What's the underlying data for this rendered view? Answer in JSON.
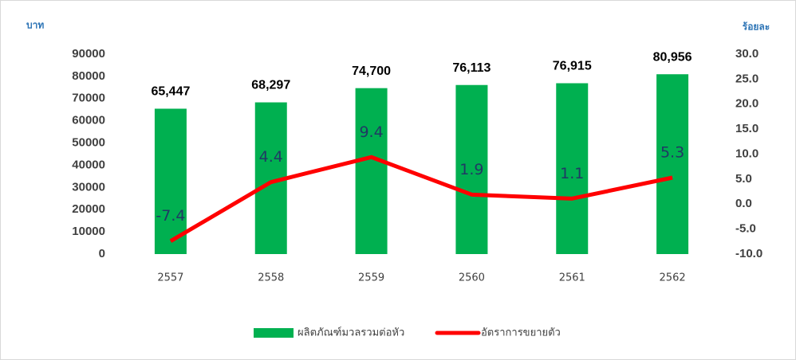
{
  "chart_data": {
    "type": "bar",
    "ylabel": "บาท",
    "y2label": "ร้อยละ",
    "categories": [
      "2557",
      "2558",
      "2559",
      "2560",
      "2561",
      "2562"
    ],
    "series": [
      {
        "name": "ผลิตภัณฑ์มวลรวมต่อหัว",
        "type": "bar",
        "color": "#00b050",
        "values": [
          65447,
          68297,
          74700,
          76113,
          76915,
          80956
        ],
        "value_labels": [
          "65,447",
          "68,297",
          "74,700",
          "76,113",
          "76,915",
          "80,956"
        ]
      },
      {
        "name": "อัตราการขยายตัว",
        "type": "line",
        "axis": "y2",
        "color": "#ff0000",
        "values": [
          -7.4,
          4.4,
          9.4,
          1.9,
          1.1,
          5.3
        ]
      }
    ],
    "ylim": [
      0,
      90000
    ],
    "yticks": [
      0,
      10000,
      20000,
      30000,
      40000,
      50000,
      60000,
      70000,
      80000,
      90000
    ],
    "y2lim": [
      -10,
      30
    ],
    "y2ticks": [
      {
        "value": -10,
        "label": "-10.0"
      },
      {
        "value": -5,
        "label": "-5.0"
      },
      {
        "value": 0,
        "label": "0.0"
      },
      {
        "value": 5,
        "label": "5.0"
      },
      {
        "value": 10,
        "label": "10.0"
      },
      {
        "value": 15,
        "label": "15.0"
      },
      {
        "value": 20,
        "label": "20.0"
      },
      {
        "value": 25,
        "label": "25.0"
      },
      {
        "value": 30,
        "label": "30.0"
      }
    ],
    "grid": false,
    "legend": "bottom"
  }
}
